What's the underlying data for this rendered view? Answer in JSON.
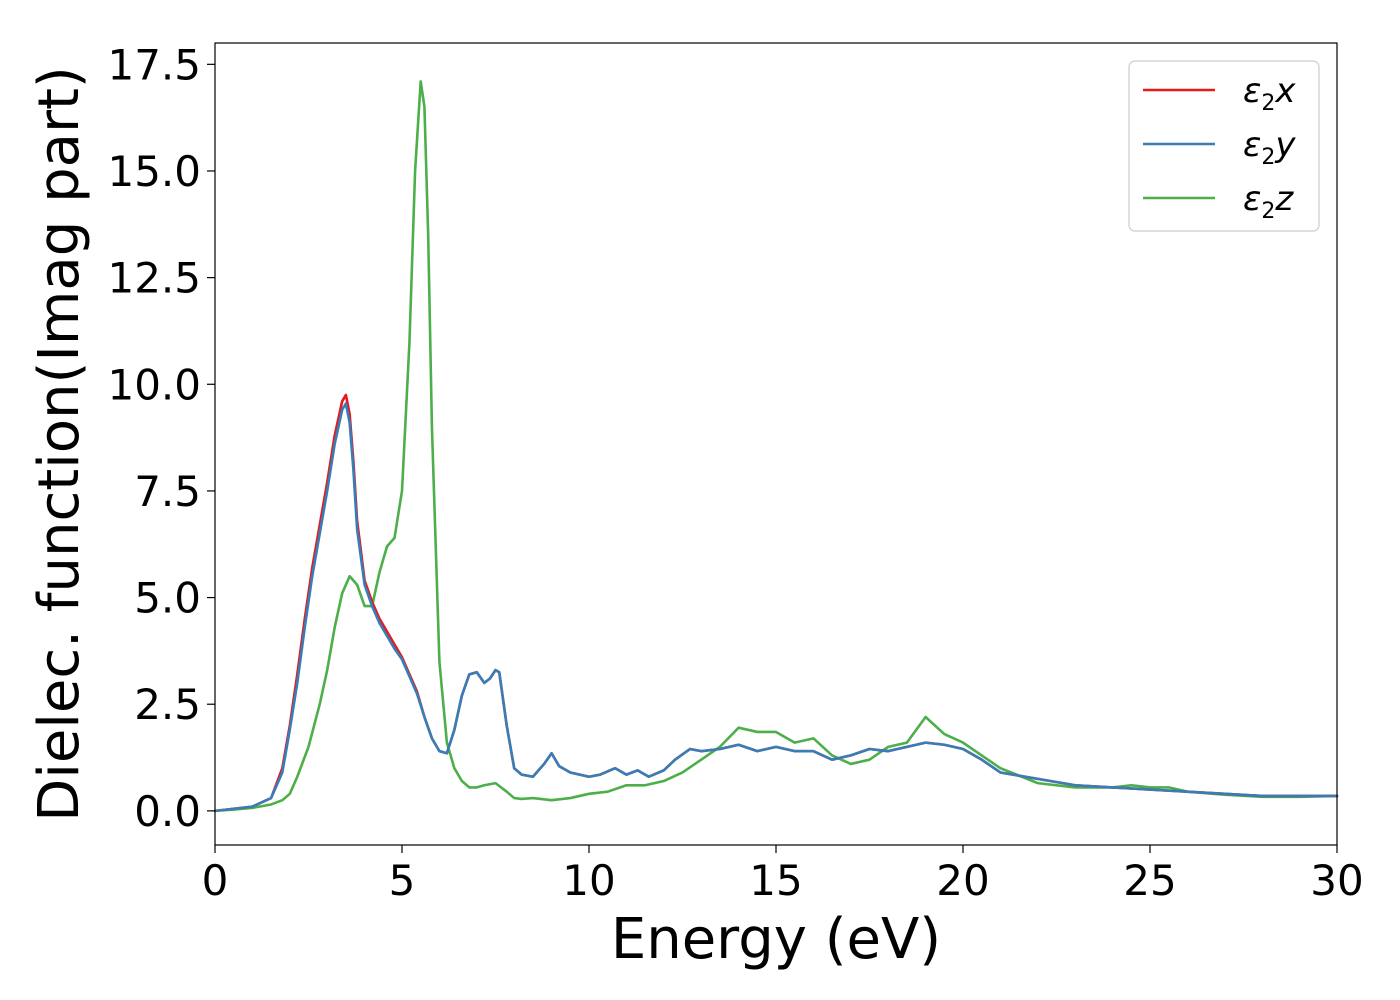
{
  "chart_data": {
    "type": "line",
    "xlabel": "Energy (eV)",
    "ylabel": "Dielec. function(Imag part)",
    "xlim": [
      0,
      30
    ],
    "ylim": [
      -0.8,
      18.0
    ],
    "xticks": [
      0,
      5,
      10,
      15,
      20,
      25,
      30
    ],
    "xtick_labels": [
      "0",
      "5",
      "10",
      "15",
      "20",
      "25",
      "30"
    ],
    "yticks": [
      0.0,
      2.5,
      5.0,
      7.5,
      10.0,
      12.5,
      15.0,
      17.5
    ],
    "ytick_labels": [
      "0.0",
      "2.5",
      "5.0",
      "7.5",
      "10.0",
      "12.5",
      "15.0",
      "17.5"
    ],
    "grid": false,
    "legend_position": "top-right",
    "series": [
      {
        "name": "ε2x",
        "name_main": "ε",
        "name_sub": "2",
        "name_suffix": "x",
        "color": "#e41a1c",
        "x": [
          0,
          0.5,
          1.0,
          1.5,
          1.8,
          2.0,
          2.2,
          2.4,
          2.6,
          2.8,
          3.0,
          3.2,
          3.4,
          3.5,
          3.6,
          3.7,
          3.8,
          4.0,
          4.2,
          4.4,
          4.6,
          4.8,
          5.0,
          5.2,
          5.4,
          5.6,
          5.8,
          6.0,
          6.2,
          6.4,
          6.6,
          6.8,
          7.0,
          7.2,
          7.35,
          7.5,
          7.6,
          7.8,
          8.0,
          8.2,
          8.5,
          8.8,
          9.0,
          9.2,
          9.5,
          10.0,
          10.3,
          10.7,
          11.0,
          11.3,
          11.6,
          12.0,
          12.3,
          12.7,
          13.0,
          13.5,
          14.0,
          14.5,
          15.0,
          15.5,
          16.0,
          16.5,
          17.0,
          17.5,
          18.0,
          18.5,
          19.0,
          19.5,
          20.0,
          20.5,
          21.0,
          22.0,
          23.0,
          24.0,
          25.0,
          26.0,
          27.0,
          28.0,
          29.0,
          30.0
        ],
        "values": [
          0.0,
          0.05,
          0.1,
          0.3,
          1.0,
          2.0,
          3.2,
          4.5,
          5.7,
          6.7,
          7.7,
          8.8,
          9.6,
          9.75,
          9.3,
          8.2,
          6.8,
          5.4,
          4.9,
          4.5,
          4.2,
          3.9,
          3.6,
          3.2,
          2.8,
          2.2,
          1.7,
          1.4,
          1.35,
          1.9,
          2.7,
          3.2,
          3.25,
          3.0,
          3.1,
          3.3,
          3.25,
          2.0,
          1.0,
          0.85,
          0.8,
          1.1,
          1.35,
          1.05,
          0.9,
          0.8,
          0.85,
          1.0,
          0.85,
          0.95,
          0.8,
          0.95,
          1.2,
          1.45,
          1.4,
          1.45,
          1.55,
          1.4,
          1.5,
          1.4,
          1.4,
          1.2,
          1.3,
          1.45,
          1.4,
          1.5,
          1.6,
          1.55,
          1.45,
          1.2,
          0.9,
          0.75,
          0.6,
          0.55,
          0.5,
          0.45,
          0.4,
          0.35,
          0.35,
          0.35
        ]
      },
      {
        "name": "ε2y",
        "name_main": "ε",
        "name_sub": "2",
        "name_suffix": "y",
        "color": "#377eb8",
        "x": [
          0,
          0.5,
          1.0,
          1.5,
          1.8,
          2.0,
          2.2,
          2.4,
          2.6,
          2.8,
          3.0,
          3.2,
          3.4,
          3.5,
          3.6,
          3.7,
          3.8,
          4.0,
          4.2,
          4.4,
          4.6,
          4.8,
          5.0,
          5.2,
          5.4,
          5.6,
          5.8,
          6.0,
          6.2,
          6.4,
          6.6,
          6.8,
          7.0,
          7.2,
          7.35,
          7.5,
          7.6,
          7.8,
          8.0,
          8.2,
          8.5,
          8.8,
          9.0,
          9.2,
          9.5,
          10.0,
          10.3,
          10.7,
          11.0,
          11.3,
          11.6,
          12.0,
          12.3,
          12.7,
          13.0,
          13.5,
          14.0,
          14.5,
          15.0,
          15.5,
          16.0,
          16.5,
          17.0,
          17.5,
          18.0,
          18.5,
          19.0,
          19.5,
          20.0,
          20.5,
          21.0,
          22.0,
          23.0,
          24.0,
          25.0,
          26.0,
          27.0,
          28.0,
          29.0,
          30.0
        ],
        "values": [
          0.0,
          0.05,
          0.1,
          0.3,
          0.9,
          1.9,
          3.0,
          4.3,
          5.5,
          6.5,
          7.5,
          8.6,
          9.4,
          9.55,
          9.1,
          8.0,
          6.6,
          5.3,
          4.8,
          4.4,
          4.1,
          3.8,
          3.55,
          3.15,
          2.75,
          2.2,
          1.7,
          1.4,
          1.35,
          1.9,
          2.7,
          3.2,
          3.25,
          3.0,
          3.1,
          3.3,
          3.25,
          2.0,
          1.0,
          0.85,
          0.8,
          1.1,
          1.35,
          1.05,
          0.9,
          0.8,
          0.85,
          1.0,
          0.85,
          0.95,
          0.8,
          0.95,
          1.2,
          1.45,
          1.4,
          1.45,
          1.55,
          1.4,
          1.5,
          1.4,
          1.4,
          1.2,
          1.3,
          1.45,
          1.4,
          1.5,
          1.6,
          1.55,
          1.45,
          1.2,
          0.9,
          0.75,
          0.6,
          0.55,
          0.5,
          0.45,
          0.4,
          0.35,
          0.35,
          0.35
        ]
      },
      {
        "name": "ε2z",
        "name_main": "ε",
        "name_sub": "2",
        "name_suffix": "z",
        "color": "#4daf4a",
        "x": [
          0,
          0.5,
          1.0,
          1.5,
          1.8,
          2.0,
          2.2,
          2.5,
          2.8,
          3.0,
          3.2,
          3.4,
          3.6,
          3.8,
          4.0,
          4.2,
          4.4,
          4.6,
          4.8,
          5.0,
          5.2,
          5.35,
          5.5,
          5.6,
          5.7,
          5.8,
          6.0,
          6.2,
          6.4,
          6.6,
          6.8,
          7.0,
          7.2,
          7.5,
          7.8,
          8.0,
          8.2,
          8.5,
          9.0,
          9.5,
          10.0,
          10.5,
          11.0,
          11.5,
          12.0,
          12.5,
          13.0,
          13.5,
          14.0,
          14.5,
          15.0,
          15.5,
          16.0,
          16.5,
          17.0,
          17.5,
          18.0,
          18.5,
          19.0,
          19.5,
          20.0,
          20.5,
          21.0,
          22.0,
          23.0,
          24.0,
          24.5,
          25.0,
          25.5,
          26.0,
          27.0,
          28.0,
          29.0,
          30.0
        ],
        "values": [
          0.0,
          0.03,
          0.07,
          0.15,
          0.25,
          0.4,
          0.8,
          1.5,
          2.5,
          3.3,
          4.3,
          5.1,
          5.5,
          5.3,
          4.8,
          4.8,
          5.6,
          6.2,
          6.4,
          7.5,
          11.0,
          15.0,
          17.1,
          16.5,
          13.5,
          9.0,
          3.5,
          1.6,
          1.0,
          0.7,
          0.55,
          0.55,
          0.6,
          0.65,
          0.45,
          0.3,
          0.28,
          0.3,
          0.25,
          0.3,
          0.4,
          0.45,
          0.6,
          0.6,
          0.7,
          0.9,
          1.2,
          1.5,
          1.95,
          1.85,
          1.85,
          1.6,
          1.7,
          1.3,
          1.1,
          1.2,
          1.5,
          1.6,
          2.2,
          1.8,
          1.6,
          1.3,
          1.0,
          0.65,
          0.55,
          0.55,
          0.6,
          0.55,
          0.55,
          0.45,
          0.38,
          0.33,
          0.33,
          0.35
        ]
      }
    ]
  }
}
